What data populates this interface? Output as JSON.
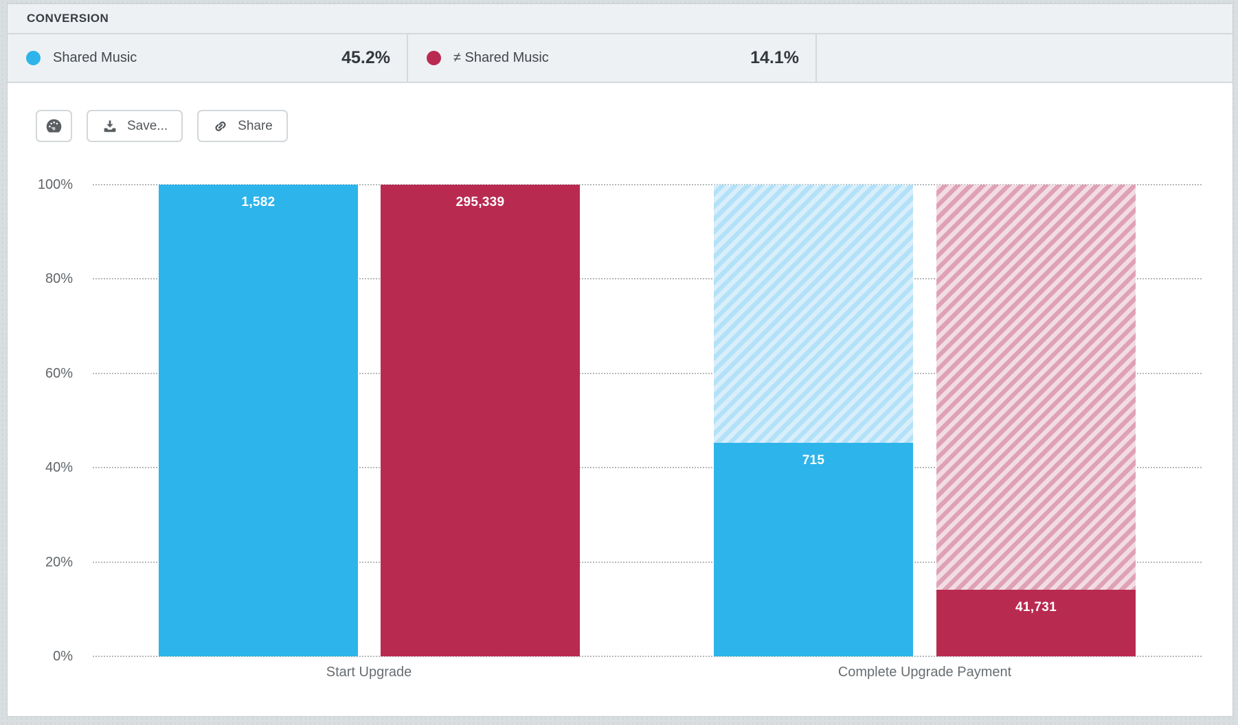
{
  "header": {
    "title": "CONVERSION"
  },
  "legend": {
    "items": [
      {
        "label": "Shared Music",
        "rate": "45.2%",
        "color": "#2db4ea"
      },
      {
        "label": "≠ Shared Music",
        "rate": "14.1%",
        "color": "#b92a51"
      }
    ]
  },
  "toolbar": {
    "gauge_icon": "gauge-icon",
    "save_label": "Save...",
    "share_label": "Share"
  },
  "chart_data": {
    "type": "bar",
    "subtype": "segmented-funnel",
    "title": "CONVERSION",
    "categories": [
      "Start Upgrade",
      "Complete Upgrade Payment"
    ],
    "series": [
      {
        "name": "Shared Music",
        "color": "#2db4ea",
        "hatch_bg": "#d8eefb",
        "hatch_stripe": "#b2e1f8",
        "counts": [
          1582,
          715
        ],
        "percents": [
          100,
          45.2
        ],
        "conversion_rate": "45.2%"
      },
      {
        "name": "≠ Shared Music",
        "color": "#b92a51",
        "hatch_bg": "#f2dce4",
        "hatch_stripe": "#dfa1b5",
        "counts": [
          295339,
          41731
        ],
        "percents": [
          100,
          14.1
        ],
        "conversion_rate": "14.1%"
      }
    ],
    "bar_labels": [
      [
        "1,582",
        "715"
      ],
      [
        "295,339",
        "41,731"
      ]
    ],
    "y_ticks": [
      "0%",
      "20%",
      "40%",
      "60%",
      "80%",
      "100%"
    ],
    "ylim": [
      0,
      100
    ],
    "grid": "horizontal-dotted",
    "legend_position": "top",
    "xlabel": "",
    "ylabel": ""
  }
}
